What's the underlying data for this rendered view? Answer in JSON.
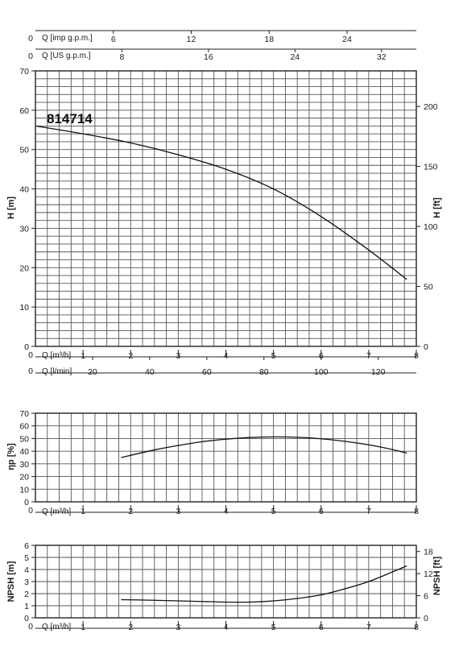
{
  "chart_data": [
    {
      "type": "line",
      "model_label": "814714",
      "xlabel": "Q [m³/h]",
      "ylabel": "H [m]",
      "ylabel_right": "H [ft]",
      "xlim": [
        0,
        8
      ],
      "ylim": [
        0,
        70
      ],
      "xticks": [
        1,
        2,
        3,
        4,
        5,
        6,
        7,
        8
      ],
      "xticks_origin": "0",
      "yticks": [
        0,
        10,
        20,
        30,
        40,
        50,
        60,
        70
      ],
      "yticks_right": [
        0,
        50,
        100,
        150,
        200
      ],
      "top_axes": [
        {
          "label": "Q [imp g.p.m.]",
          "origin": "0",
          "ticks": [
            6,
            12,
            18,
            24
          ]
        },
        {
          "label": "Q [US g.p.m.]",
          "origin": "0",
          "ticks": [
            8,
            16,
            24,
            32
          ]
        }
      ],
      "bottom_axis_2": {
        "label": "Q [l/min]",
        "origin": "0",
        "ticks": [
          20,
          40,
          60,
          80,
          100,
          120
        ]
      },
      "grid": true,
      "series": [
        {
          "x": [
            0,
            1,
            2,
            3,
            4,
            5,
            6,
            7,
            7.8
          ],
          "y": [
            56,
            54,
            51.7,
            48.7,
            45,
            40,
            33,
            24.5,
            17
          ]
        }
      ]
    },
    {
      "type": "line",
      "xlabel": "Q [m³/h]",
      "ylabel": "ηp [%]",
      "xlim": [
        0,
        8
      ],
      "ylim": [
        0,
        70
      ],
      "xticks": [
        1,
        2,
        3,
        4,
        5,
        6,
        7,
        8
      ],
      "xticks_origin": "0",
      "yticks": [
        0,
        10,
        20,
        30,
        40,
        50,
        60,
        70
      ],
      "grid": true,
      "series": [
        {
          "x": [
            1.8,
            2.5,
            3,
            3.5,
            4,
            4.5,
            5,
            5.5,
            6,
            6.5,
            7,
            7.5,
            7.8
          ],
          "y": [
            35,
            41,
            44.5,
            47.5,
            49.5,
            50.8,
            51.3,
            51,
            49.8,
            47.8,
            45,
            41.3,
            38.5
          ]
        }
      ]
    },
    {
      "type": "line",
      "xlabel": "Q [m³/h]",
      "ylabel": "NPSH [m]",
      "ylabel_right": "NPSH [ft]",
      "xlim": [
        0,
        8
      ],
      "ylim": [
        0,
        6
      ],
      "xticks": [
        1,
        2,
        3,
        4,
        5,
        6,
        7,
        8
      ],
      "xticks_origin": "0",
      "yticks": [
        0,
        1,
        2,
        3,
        4,
        5,
        6
      ],
      "yticks_right": [
        0,
        6,
        12,
        18
      ],
      "grid": true,
      "series": [
        {
          "x": [
            1.8,
            2.5,
            3,
            3.5,
            4,
            4.5,
            5,
            5.5,
            6,
            6.5,
            7,
            7.5,
            7.8
          ],
          "y": [
            1.5,
            1.45,
            1.4,
            1.35,
            1.3,
            1.3,
            1.4,
            1.6,
            1.9,
            2.4,
            3.0,
            3.8,
            4.3
          ]
        }
      ]
    }
  ]
}
